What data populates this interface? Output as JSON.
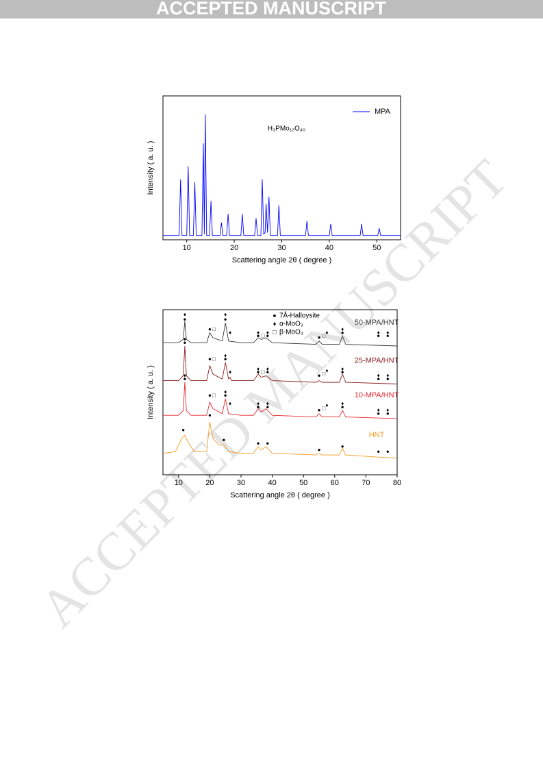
{
  "banner": "ACCEPTED MANUSCRIPT",
  "watermark": "ACCEPTED MANUSCRIPT",
  "chart_data": [
    {
      "type": "line",
      "xlabel": "Scattering angle 2θ ( degree )",
      "ylabel": "Intensity ( a. u. )",
      "annotation": "H₃PMo₁₂O₄₀",
      "legend": "upper right",
      "xlim": [
        5,
        55
      ],
      "ylim": [
        0,
        100
      ],
      "xticks": [
        10,
        20,
        30,
        40,
        50
      ],
      "series": [
        {
          "name": "MPA",
          "color": "#0000ff",
          "x": [
            5,
            8.4,
            8.7,
            9,
            10,
            10.3,
            10.6,
            11.4,
            11.7,
            12,
            13.2,
            13.5,
            13.7,
            13.9,
            14.2,
            14.8,
            15.1,
            15.4,
            17,
            17.3,
            17.6,
            18.4,
            18.7,
            19,
            21.4,
            21.7,
            22,
            24.3,
            24.6,
            24.9,
            25.6,
            25.9,
            26.2,
            26.5,
            26.7,
            27,
            27.3,
            27.6,
            29.1,
            29.4,
            29.7,
            35,
            35.3,
            35.6,
            40,
            40.3,
            40.6,
            46.5,
            46.8,
            47.1,
            50.2,
            50.5,
            50.8,
            55
          ],
          "values": [
            3,
            3,
            42,
            3,
            3,
            51,
            3,
            3,
            40,
            3,
            3,
            67,
            4,
            87,
            3,
            3,
            27,
            3,
            3,
            12,
            3,
            3,
            18,
            3,
            3,
            18,
            3,
            3,
            15,
            3,
            3,
            42,
            4,
            5,
            25,
            5,
            30,
            3,
            3,
            24,
            3,
            3,
            13,
            3,
            3,
            11,
            3,
            3,
            11,
            3,
            3,
            8,
            3,
            3
          ]
        }
      ]
    },
    {
      "type": "line",
      "xlabel": "Scattering angle 2θ ( degree )",
      "ylabel": "Intensity ( a. u. )",
      "xlim": [
        5,
        80
      ],
      "ylim": [
        0,
        100
      ],
      "xticks": [
        10,
        20,
        30,
        40,
        50,
        60,
        70,
        80
      ],
      "legend": [
        {
          "symbol": "●",
          "label": "7Å-Halloysite"
        },
        {
          "symbol": "♦",
          "label": "α-MoO₃"
        },
        {
          "symbol": "□",
          "label": "β-MoO₃"
        }
      ],
      "series": [
        {
          "name": "50-MPA/HNT",
          "color": "#333333",
          "x": [
            5,
            10,
            11.5,
            12,
            12.5,
            14,
            19,
            20,
            21,
            24,
            25,
            26,
            30,
            34,
            35.5,
            36.5,
            38,
            40,
            54,
            55,
            56,
            61.5,
            62.5,
            63.5,
            80
          ],
          "values": [
            80,
            80,
            82,
            93,
            82,
            80,
            80,
            86,
            83,
            81,
            92,
            81,
            80,
            80,
            83,
            82,
            83,
            80,
            79,
            81,
            79,
            79,
            84,
            79,
            78
          ]
        },
        {
          "name": "25-MPA/HNT",
          "color": "#8b1a1a",
          "x": [
            5,
            10,
            11.5,
            12,
            12.5,
            14,
            19,
            20,
            21,
            24,
            25,
            26,
            26.5,
            27,
            30,
            34,
            35.5,
            36.5,
            38,
            40,
            54,
            55,
            56,
            61.5,
            62.5,
            63.5,
            80
          ],
          "values": [
            57,
            57,
            60,
            78,
            60,
            57,
            57,
            66,
            61,
            58,
            68,
            58,
            59,
            57,
            57,
            57,
            61,
            59,
            60,
            57,
            56,
            57,
            56,
            56,
            61,
            56,
            55
          ]
        },
        {
          "name": "10-MPA/HNT",
          "color": "#e8262b",
          "x": [
            5,
            10,
            11.5,
            12,
            12.5,
            14,
            19,
            20,
            21,
            24,
            25,
            26,
            30,
            34,
            35.5,
            36.5,
            38,
            40,
            54,
            55,
            56,
            61.5,
            62.5,
            63.5,
            80
          ],
          "values": [
            36,
            36,
            39,
            56,
            39,
            36,
            36,
            44,
            40,
            37,
            46,
            37,
            36,
            36,
            40,
            38,
            40,
            36,
            35,
            37,
            35,
            35,
            39,
            35,
            34
          ]
        },
        {
          "name": "HNT",
          "color": "#f39a1e",
          "x": [
            5,
            9,
            11,
            12,
            13,
            15,
            19,
            20,
            21,
            23,
            24.5,
            26,
            30,
            34,
            35.5,
            36.5,
            38,
            40,
            54,
            55,
            56,
            61.5,
            62.5,
            63.5,
            80
          ],
          "values": [
            13,
            14,
            22,
            24,
            20,
            14,
            14,
            32,
            22,
            18,
            18,
            14,
            13,
            13,
            17,
            15,
            17,
            13,
            12,
            13,
            12,
            12,
            16,
            12,
            10
          ]
        }
      ],
      "markers": [
        {
          "x": 12,
          "y": 97,
          "symbol": "♦"
        },
        {
          "x": 12,
          "y": 94,
          "symbol": "●"
        },
        {
          "x": 20,
          "y": 88,
          "symbol": "●"
        },
        {
          "x": 21.3,
          "y": 88,
          "symbol": "□"
        },
        {
          "x": 25,
          "y": 97,
          "symbol": "♦"
        },
        {
          "x": 25,
          "y": 94,
          "symbol": "●"
        },
        {
          "x": 26.5,
          "y": 86,
          "symbol": "♦"
        },
        {
          "x": 35.5,
          "y": 86,
          "symbol": "♦"
        },
        {
          "x": 35.5,
          "y": 84,
          "symbol": "●"
        },
        {
          "x": 37,
          "y": 84,
          "symbol": "□"
        },
        {
          "x": 38.5,
          "y": 86,
          "symbol": "♦"
        },
        {
          "x": 38.5,
          "y": 84,
          "symbol": "●"
        },
        {
          "x": 55,
          "y": 83,
          "symbol": "●"
        },
        {
          "x": 56.5,
          "y": 84,
          "symbol": "□"
        },
        {
          "x": 57.5,
          "y": 86,
          "symbol": "♦"
        },
        {
          "x": 62.5,
          "y": 88,
          "symbol": "♦"
        },
        {
          "x": 62.5,
          "y": 86,
          "symbol": "●"
        },
        {
          "x": 74,
          "y": 86,
          "symbol": "♦"
        },
        {
          "x": 74,
          "y": 84,
          "symbol": "●"
        },
        {
          "x": 77,
          "y": 86,
          "symbol": "♦"
        },
        {
          "x": 77,
          "y": 84,
          "symbol": "●"
        },
        {
          "x": 12,
          "y": 82,
          "symbol": "♦"
        },
        {
          "x": 12,
          "y": 80,
          "symbol": "●"
        },
        {
          "x": 20,
          "y": 70,
          "symbol": "●"
        },
        {
          "x": 21.3,
          "y": 70,
          "symbol": "□"
        },
        {
          "x": 25,
          "y": 72,
          "symbol": "♦"
        },
        {
          "x": 25,
          "y": 70,
          "symbol": "●"
        },
        {
          "x": 26.5,
          "y": 62,
          "symbol": "♦"
        },
        {
          "x": 35.5,
          "y": 64,
          "symbol": "♦"
        },
        {
          "x": 35.5,
          "y": 62,
          "symbol": "●"
        },
        {
          "x": 37,
          "y": 62,
          "symbol": "□"
        },
        {
          "x": 38.5,
          "y": 64,
          "symbol": "♦"
        },
        {
          "x": 38.5,
          "y": 62,
          "symbol": "●"
        },
        {
          "x": 55,
          "y": 60,
          "symbol": "●"
        },
        {
          "x": 56.5,
          "y": 61,
          "symbol": "□"
        },
        {
          "x": 57.5,
          "y": 63,
          "symbol": "♦"
        },
        {
          "x": 62.5,
          "y": 64,
          "symbol": "♦"
        },
        {
          "x": 62.5,
          "y": 62,
          "symbol": "●"
        },
        {
          "x": 74,
          "y": 60,
          "symbol": "♦"
        },
        {
          "x": 74,
          "y": 58,
          "symbol": "●"
        },
        {
          "x": 77,
          "y": 60,
          "symbol": "♦"
        },
        {
          "x": 77,
          "y": 58,
          "symbol": "●"
        },
        {
          "x": 12,
          "y": 60,
          "symbol": "♦"
        },
        {
          "x": 12,
          "y": 58,
          "symbol": "●"
        },
        {
          "x": 20,
          "y": 48,
          "symbol": "●"
        },
        {
          "x": 21.3,
          "y": 48,
          "symbol": "□"
        },
        {
          "x": 25,
          "y": 50,
          "symbol": "♦"
        },
        {
          "x": 25,
          "y": 48,
          "symbol": "●"
        },
        {
          "x": 26.5,
          "y": 43,
          "symbol": "♦"
        },
        {
          "x": 35.5,
          "y": 43,
          "symbol": "♦"
        },
        {
          "x": 35.5,
          "y": 41,
          "symbol": "●"
        },
        {
          "x": 38.5,
          "y": 43,
          "symbol": "♦"
        },
        {
          "x": 38.5,
          "y": 41,
          "symbol": "●"
        },
        {
          "x": 55,
          "y": 39,
          "symbol": "●"
        },
        {
          "x": 56.5,
          "y": 40,
          "symbol": "□"
        },
        {
          "x": 57.5,
          "y": 42,
          "symbol": "♦"
        },
        {
          "x": 62.5,
          "y": 43,
          "symbol": "♦"
        },
        {
          "x": 62.5,
          "y": 41,
          "symbol": "●"
        },
        {
          "x": 74,
          "y": 39,
          "symbol": "♦"
        },
        {
          "x": 74,
          "y": 37,
          "symbol": "●"
        },
        {
          "x": 77,
          "y": 39,
          "symbol": "♦"
        },
        {
          "x": 77,
          "y": 37,
          "symbol": "●"
        },
        {
          "x": 11.5,
          "y": 27,
          "symbol": "●"
        },
        {
          "x": 20,
          "y": 36,
          "symbol": "●"
        },
        {
          "x": 24.5,
          "y": 21,
          "symbol": "●"
        },
        {
          "x": 35.5,
          "y": 19,
          "symbol": "●"
        },
        {
          "x": 38.5,
          "y": 19,
          "symbol": "●"
        },
        {
          "x": 55,
          "y": 15,
          "symbol": "●"
        },
        {
          "x": 62.5,
          "y": 17,
          "symbol": "●"
        },
        {
          "x": 74,
          "y": 14,
          "symbol": "●"
        },
        {
          "x": 77,
          "y": 14,
          "symbol": "●"
        }
      ]
    }
  ]
}
